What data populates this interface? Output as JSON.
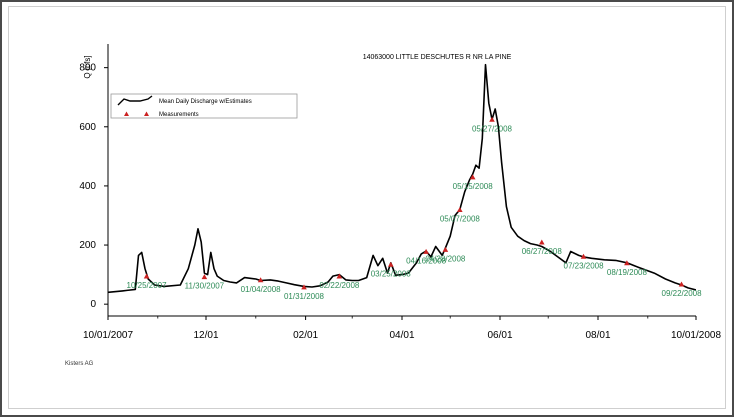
{
  "footer": {
    "credit": "Kisters AG"
  },
  "chart_data": {
    "type": "line",
    "title": "14063000 LITTLE DESCHUTES R NR LA PINE",
    "ylabel": "Q [cfs]",
    "xlabel": "",
    "ylim": [
      -40,
      880
    ],
    "xlim": [
      "2007-10-01",
      "2008-10-01"
    ],
    "yticks": [
      0,
      200,
      400,
      600,
      800
    ],
    "xticks": [
      {
        "date": "2007-10-01",
        "label": "10/01/2007"
      },
      {
        "date": "2007-12-01",
        "label": "12/01"
      },
      {
        "date": "2008-02-01",
        "label": "02/01"
      },
      {
        "date": "2008-04-01",
        "label": "04/01"
      },
      {
        "date": "2008-06-01",
        "label": "06/01"
      },
      {
        "date": "2008-08-01",
        "label": "08/01"
      },
      {
        "date": "2008-10-01",
        "label": "10/01/2008"
      }
    ],
    "grid": false,
    "legend_position": "top-left",
    "colors": {
      "line": "#000000",
      "marker": "#cc2222",
      "annotation": "#2e8b57"
    },
    "series": [
      {
        "name": "Mean Daily Discharge w/Estimates",
        "x": [
          "2007-10-01",
          "2007-10-10",
          "2007-10-18",
          "2007-10-20",
          "2007-10-22",
          "2007-10-24",
          "2007-10-26",
          "2007-10-30",
          "2007-11-05",
          "2007-11-15",
          "2007-11-20",
          "2007-11-24",
          "2007-11-26",
          "2007-11-28",
          "2007-11-30",
          "2007-12-02",
          "2007-12-04",
          "2007-12-06",
          "2007-12-08",
          "2007-12-12",
          "2007-12-16",
          "2007-12-20",
          "2007-12-25",
          "2008-01-01",
          "2008-01-04",
          "2008-01-10",
          "2008-01-15",
          "2008-01-20",
          "2008-01-25",
          "2008-01-31",
          "2008-02-05",
          "2008-02-10",
          "2008-02-15",
          "2008-02-18",
          "2008-02-22",
          "2008-02-26",
          "2008-03-01",
          "2008-03-05",
          "2008-03-10",
          "2008-03-14",
          "2008-03-17",
          "2008-03-20",
          "2008-03-23",
          "2008-03-25",
          "2008-03-28",
          "2008-04-01",
          "2008-04-05",
          "2008-04-10",
          "2008-04-13",
          "2008-04-16",
          "2008-04-19",
          "2008-04-22",
          "2008-04-26",
          "2008-04-28",
          "2008-05-01",
          "2008-05-04",
          "2008-05-07",
          "2008-05-10",
          "2008-05-13",
          "2008-05-15",
          "2008-05-17",
          "2008-05-19",
          "2008-05-21",
          "2008-05-23",
          "2008-05-25",
          "2008-05-27",
          "2008-05-29",
          "2008-05-31",
          "2008-06-02",
          "2008-06-05",
          "2008-06-08",
          "2008-06-12",
          "2008-06-16",
          "2008-06-20",
          "2008-06-24",
          "2008-06-27",
          "2008-07-02",
          "2008-07-07",
          "2008-07-12",
          "2008-07-15",
          "2008-07-20",
          "2008-07-23",
          "2008-07-28",
          "2008-08-05",
          "2008-08-12",
          "2008-08-19",
          "2008-08-26",
          "2008-09-05",
          "2008-09-12",
          "2008-09-18",
          "2008-09-22",
          "2008-09-26",
          "2008-10-01"
        ],
        "y": [
          40,
          45,
          50,
          165,
          175,
          120,
          85,
          65,
          60,
          65,
          120,
          200,
          255,
          210,
          105,
          100,
          175,
          120,
          95,
          80,
          75,
          72,
          90,
          85,
          80,
          82,
          78,
          72,
          66,
          60,
          58,
          62,
          75,
          95,
          100,
          82,
          80,
          80,
          90,
          165,
          130,
          155,
          105,
          140,
          98,
          100,
          105,
          140,
          170,
          180,
          160,
          195,
          165,
          190,
          230,
          300,
          320,
          380,
          420,
          440,
          470,
          460,
          560,
          810,
          680,
          625,
          660,
          600,
          480,
          330,
          260,
          230,
          215,
          205,
          200,
          195,
          180,
          160,
          140,
          178,
          165,
          160,
          155,
          150,
          148,
          140,
          125,
          105,
          85,
          72,
          65,
          55,
          48
        ]
      },
      {
        "name": "Measurements",
        "points": [
          {
            "x": "2007-10-25",
            "y": 95,
            "label": "10/25/2007"
          },
          {
            "x": "2007-11-30",
            "y": 93,
            "label": "11/30/2007"
          },
          {
            "x": "2008-01-04",
            "y": 82,
            "label": "01/04/2008"
          },
          {
            "x": "2008-01-31",
            "y": 58,
            "label": "01/31/2008"
          },
          {
            "x": "2008-02-22",
            "y": 95,
            "label": "02/22/2008"
          },
          {
            "x": "2008-03-25",
            "y": 135,
            "label": "03/25/2008"
          },
          {
            "x": "2008-04-16",
            "y": 178,
            "label": "04/16/2008"
          },
          {
            "x": "2008-04-28",
            "y": 185,
            "label": "04/28/2008"
          },
          {
            "x": "2008-05-07",
            "y": 320,
            "label": "05/07/2008"
          },
          {
            "x": "2008-05-15",
            "y": 430,
            "label": "05/15/2008"
          },
          {
            "x": "2008-05-27",
            "y": 625,
            "label": "05/27/2008"
          },
          {
            "x": "2008-06-27",
            "y": 210,
            "label": "06/27/2008"
          },
          {
            "x": "2008-07-23",
            "y": 162,
            "label": "07/23/2008"
          },
          {
            "x": "2008-08-19",
            "y": 140,
            "label": "08/19/2008"
          },
          {
            "x": "2008-09-22",
            "y": 68,
            "label": "09/22/2008"
          }
        ]
      }
    ]
  }
}
